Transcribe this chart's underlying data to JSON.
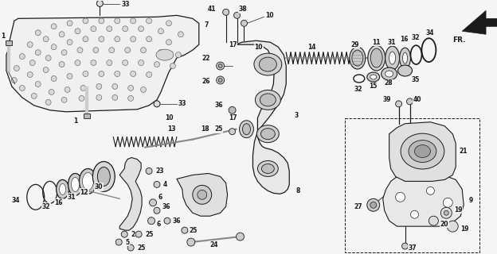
{
  "background_color": "#f5f5f5",
  "line_color": "#1a1a1a",
  "fig_width": 6.24,
  "fig_height": 3.2,
  "dpi": 100
}
